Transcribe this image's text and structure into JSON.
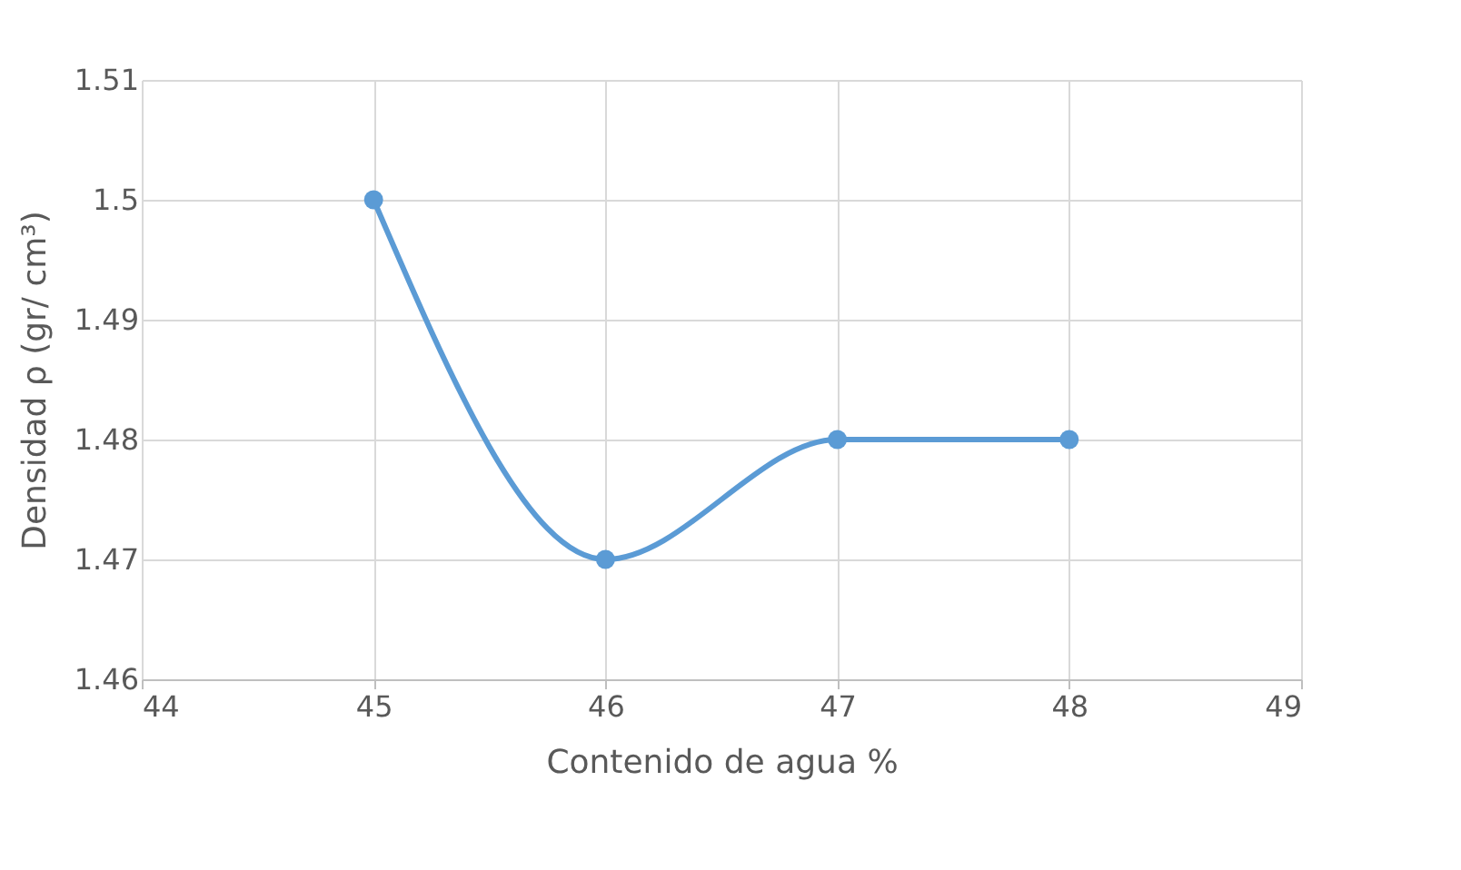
{
  "chart_data": {
    "type": "line",
    "xlabel": "Contenido de agua %",
    "ylabel": "Densidad ρ (gr/ cm³)",
    "x": [
      45,
      46,
      47,
      48
    ],
    "series": [
      {
        "color": "#5b9bd5",
        "values": [
          1.5,
          1.47,
          1.48,
          1.48
        ]
      }
    ],
    "xlim": [
      44,
      49
    ],
    "xticks": [
      44,
      45,
      46,
      47,
      48,
      49
    ],
    "ylim": [
      1.46,
      1.51
    ],
    "yticks": [
      1.46,
      1.47,
      1.48,
      1.49,
      1.5,
      1.51
    ],
    "grid": true,
    "marker": "circle",
    "line_style": "solid"
  }
}
